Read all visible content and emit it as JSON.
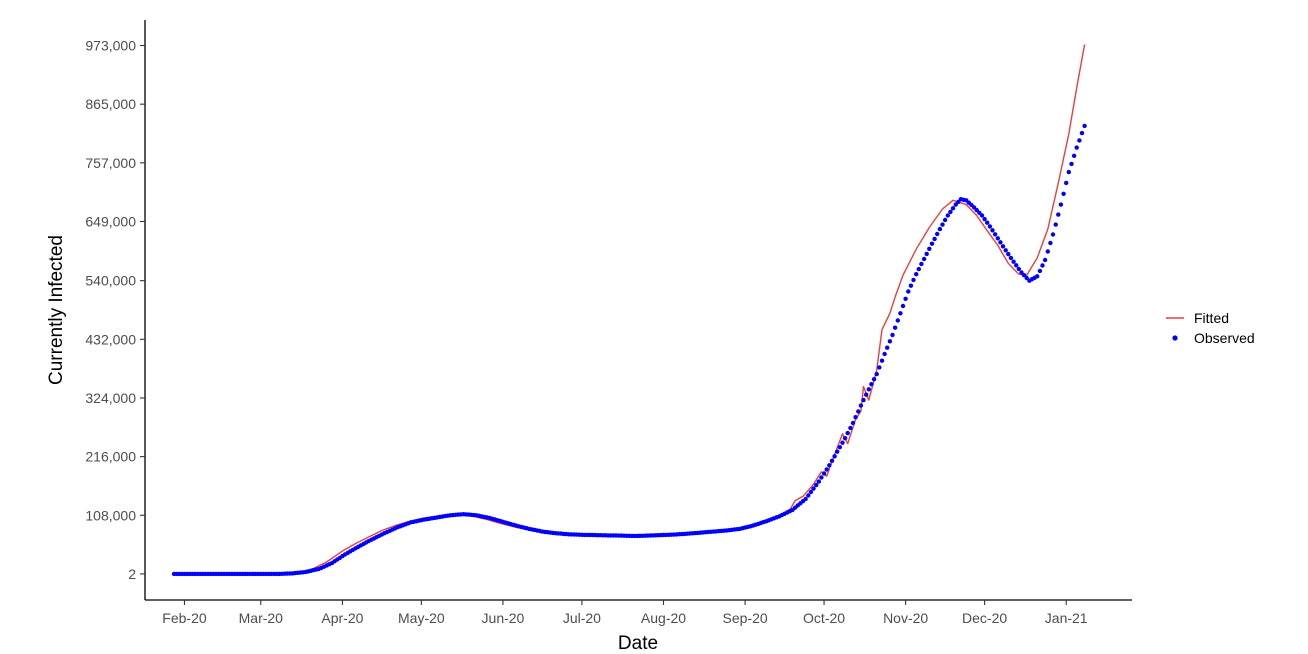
{
  "chart_data": {
    "type": "line",
    "title": "",
    "xlabel": "Date",
    "ylabel": "Currently Infected",
    "x_range": [
      "2020-01-17",
      "2021-01-26"
    ],
    "ylim": [
      -48000,
      1020000
    ],
    "grid": false,
    "legend_placement": "right",
    "x_ticks": [
      {
        "date": "2020-02-01",
        "label": "Feb-20"
      },
      {
        "date": "2020-03-01",
        "label": "Mar-20"
      },
      {
        "date": "2020-04-01",
        "label": "Apr-20"
      },
      {
        "date": "2020-05-01",
        "label": "May-20"
      },
      {
        "date": "2020-06-01",
        "label": "Jun-20"
      },
      {
        "date": "2020-07-01",
        "label": "Jul-20"
      },
      {
        "date": "2020-08-01",
        "label": "Aug-20"
      },
      {
        "date": "2020-09-01",
        "label": "Sep-20"
      },
      {
        "date": "2020-10-01",
        "label": "Oct-20"
      },
      {
        "date": "2020-11-01",
        "label": "Nov-20"
      },
      {
        "date": "2020-12-01",
        "label": "Dec-20"
      },
      {
        "date": "2021-01-01",
        "label": "Jan-21"
      }
    ],
    "y_ticks": [
      {
        "value": 2,
        "label": "2"
      },
      {
        "value": 108000,
        "label": "108,000"
      },
      {
        "value": 216000,
        "label": "216,000"
      },
      {
        "value": 324000,
        "label": "324,000"
      },
      {
        "value": 432000,
        "label": "432,000"
      },
      {
        "value": 540000,
        "label": "540,000"
      },
      {
        "value": 649000,
        "label": "649,000"
      },
      {
        "value": 757000,
        "label": "757,000"
      },
      {
        "value": 865000,
        "label": "865,000"
      },
      {
        "value": 973000,
        "label": "973,000"
      }
    ],
    "series": [
      {
        "name": "Fitted",
        "style": "line",
        "color": "#e8403b",
        "points": [
          [
            "2020-01-28",
            0
          ],
          [
            "2020-02-15",
            0
          ],
          [
            "2020-03-01",
            0
          ],
          [
            "2020-03-11",
            500
          ],
          [
            "2020-03-16",
            3000
          ],
          [
            "2020-03-21",
            10000
          ],
          [
            "2020-03-26",
            22000
          ],
          [
            "2020-04-01",
            42000
          ],
          [
            "2020-04-06",
            56000
          ],
          [
            "2020-04-11",
            68000
          ],
          [
            "2020-04-16",
            80000
          ],
          [
            "2020-04-21",
            89000
          ],
          [
            "2020-04-26",
            96000
          ],
          [
            "2020-05-01",
            102000
          ],
          [
            "2020-05-06",
            106000
          ],
          [
            "2020-05-11",
            109000
          ],
          [
            "2020-05-16",
            110000
          ],
          [
            "2020-05-21",
            106000
          ],
          [
            "2020-05-26",
            100000
          ],
          [
            "2020-05-31",
            93000
          ],
          [
            "2020-06-05",
            87000
          ],
          [
            "2020-06-10",
            82000
          ],
          [
            "2020-06-15",
            78000
          ],
          [
            "2020-06-20",
            75000
          ],
          [
            "2020-06-30",
            72000
          ],
          [
            "2020-07-10",
            71000
          ],
          [
            "2020-07-20",
            70000
          ],
          [
            "2020-07-30",
            71000
          ],
          [
            "2020-08-09",
            73000
          ],
          [
            "2020-08-19",
            77000
          ],
          [
            "2020-08-29",
            82000
          ],
          [
            "2020-09-03",
            88000
          ],
          [
            "2020-09-08",
            96000
          ],
          [
            "2020-09-13",
            106000
          ],
          [
            "2020-09-18",
            118000
          ],
          [
            "2020-09-20",
            135000
          ],
          [
            "2020-09-23",
            143000
          ],
          [
            "2020-09-27",
            165000
          ],
          [
            "2020-09-30",
            188000
          ],
          [
            "2020-10-02",
            180000
          ],
          [
            "2020-10-05",
            220000
          ],
          [
            "2020-10-08",
            258000
          ],
          [
            "2020-10-10",
            240000
          ],
          [
            "2020-10-13",
            285000
          ],
          [
            "2020-10-15",
            300000
          ],
          [
            "2020-10-16",
            345000
          ],
          [
            "2020-10-18",
            320000
          ],
          [
            "2020-10-21",
            375000
          ],
          [
            "2020-10-23",
            450000
          ],
          [
            "2020-10-26",
            480000
          ],
          [
            "2020-10-28",
            510000
          ],
          [
            "2020-10-31",
            550000
          ],
          [
            "2020-11-05",
            598000
          ],
          [
            "2020-11-10",
            638000
          ],
          [
            "2020-11-15",
            672000
          ],
          [
            "2020-11-19",
            688000
          ],
          [
            "2020-11-24",
            680000
          ],
          [
            "2020-11-28",
            660000
          ],
          [
            "2020-12-02",
            632000
          ],
          [
            "2020-12-06",
            605000
          ],
          [
            "2020-12-10",
            572000
          ],
          [
            "2020-12-14",
            552000
          ],
          [
            "2020-12-17",
            550000
          ],
          [
            "2020-12-21",
            582000
          ],
          [
            "2020-12-25",
            635000
          ],
          [
            "2020-12-29",
            720000
          ],
          [
            "2021-01-02",
            810000
          ],
          [
            "2021-01-05",
            895000
          ],
          [
            "2021-01-08",
            975000
          ]
        ]
      },
      {
        "name": "Observed",
        "style": "points",
        "color": "#0000ff",
        "points": [
          [
            "2020-01-28",
            0
          ],
          [
            "2020-02-07",
            0
          ],
          [
            "2020-02-17",
            0
          ],
          [
            "2020-02-27",
            0
          ],
          [
            "2020-03-08",
            0
          ],
          [
            "2020-03-13",
            1000
          ],
          [
            "2020-03-18",
            3500
          ],
          [
            "2020-03-23",
            9000
          ],
          [
            "2020-03-28",
            20000
          ],
          [
            "2020-04-02",
            36000
          ],
          [
            "2020-04-07",
            50000
          ],
          [
            "2020-04-12",
            63000
          ],
          [
            "2020-04-17",
            75000
          ],
          [
            "2020-04-22",
            86000
          ],
          [
            "2020-04-27",
            95000
          ],
          [
            "2020-05-02",
            100000
          ],
          [
            "2020-05-07",
            104000
          ],
          [
            "2020-05-12",
            108000
          ],
          [
            "2020-05-17",
            110000
          ],
          [
            "2020-05-22",
            108000
          ],
          [
            "2020-05-27",
            103000
          ],
          [
            "2020-06-01",
            96000
          ],
          [
            "2020-06-06",
            89000
          ],
          [
            "2020-06-11",
            83000
          ],
          [
            "2020-06-16",
            78000
          ],
          [
            "2020-06-21",
            75000
          ],
          [
            "2020-06-26",
            73000
          ],
          [
            "2020-07-01",
            72000
          ],
          [
            "2020-07-06",
            71500
          ],
          [
            "2020-07-11",
            71000
          ],
          [
            "2020-07-16",
            70500
          ],
          [
            "2020-07-21",
            70000
          ],
          [
            "2020-07-26",
            70500
          ],
          [
            "2020-07-31",
            71500
          ],
          [
            "2020-08-05",
            72500
          ],
          [
            "2020-08-10",
            74000
          ],
          [
            "2020-08-15",
            76000
          ],
          [
            "2020-08-20",
            78000
          ],
          [
            "2020-08-25",
            80000
          ],
          [
            "2020-08-30",
            83000
          ],
          [
            "2020-09-04",
            89000
          ],
          [
            "2020-09-09",
            97000
          ],
          [
            "2020-09-14",
            106000
          ],
          [
            "2020-09-19",
            118000
          ],
          [
            "2020-09-24",
            138000
          ],
          [
            "2020-09-29",
            170000
          ],
          [
            "2020-10-03",
            200000
          ],
          [
            "2020-10-06",
            225000
          ],
          [
            "2020-10-09",
            250000
          ],
          [
            "2020-10-12",
            278000
          ],
          [
            "2020-10-15",
            310000
          ],
          [
            "2020-10-18",
            340000
          ],
          [
            "2020-10-21",
            368000
          ],
          [
            "2020-10-24",
            405000
          ],
          [
            "2020-10-27",
            440000
          ],
          [
            "2020-10-30",
            480000
          ],
          [
            "2020-11-02",
            520000
          ],
          [
            "2020-11-05",
            552000
          ],
          [
            "2020-11-08",
            580000
          ],
          [
            "2020-11-11",
            608000
          ],
          [
            "2020-11-14",
            635000
          ],
          [
            "2020-11-17",
            660000
          ],
          [
            "2020-11-20",
            680000
          ],
          [
            "2020-11-22",
            690000
          ],
          [
            "2020-11-24",
            688000
          ],
          [
            "2020-11-27",
            675000
          ],
          [
            "2020-11-30",
            660000
          ],
          [
            "2020-12-03",
            640000
          ],
          [
            "2020-12-06",
            618000
          ],
          [
            "2020-12-09",
            596000
          ],
          [
            "2020-12-12",
            575000
          ],
          [
            "2020-12-15",
            555000
          ],
          [
            "2020-12-18",
            540000
          ],
          [
            "2020-12-21",
            548000
          ],
          [
            "2020-12-24",
            578000
          ],
          [
            "2020-12-27",
            625000
          ],
          [
            "2020-12-30",
            680000
          ],
          [
            "2021-01-02",
            740000
          ],
          [
            "2021-01-05",
            785000
          ],
          [
            "2021-01-08",
            825000
          ]
        ]
      }
    ]
  }
}
